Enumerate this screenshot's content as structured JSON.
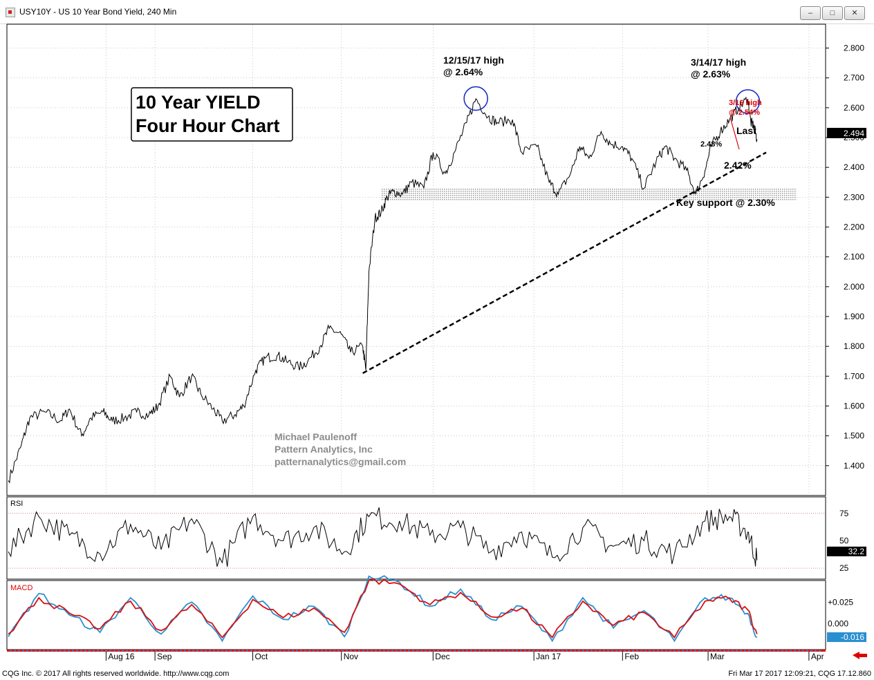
{
  "window": {
    "title": "USY10Y - US 10 Year Bond Yield, 240 Min",
    "minimize_glyph": "–",
    "maximize_glyph": "□",
    "close_glyph": "✕"
  },
  "footer": {
    "copyright": "CQG Inc. © 2017 All rights reserved worldwide. http://www.cqg.com",
    "timestamp": "Fri Mar 17 2017 12:09:21, CQG 17.12.860"
  },
  "colors": {
    "price": "#000000",
    "circle": "#1a2fc8",
    "red_annotation": "#e00000",
    "macd_line": "#2a8fd0",
    "macd_signal": "#d81010",
    "support_zone": "#c8c8c8"
  },
  "chart_data": [
    {
      "type": "line",
      "name": "price",
      "title": "10 Year YIELD",
      "subtitle": "Four Hour Chart",
      "ylim": [
        1.3,
        2.88
      ],
      "yticks": [
        1.4,
        1.5,
        1.6,
        1.7,
        1.8,
        1.9,
        2.0,
        2.1,
        2.2,
        2.3,
        2.4,
        2.5,
        2.6,
        2.7,
        2.8
      ],
      "ytick_labels": [
        "1.400",
        "1.500",
        "1.600",
        "1.700",
        "1.800",
        "1.900",
        "2.000",
        "2.100",
        "2.200",
        "2.300",
        "2.400",
        "2.500",
        "2.600",
        "2.700",
        "2.800"
      ],
      "xlim": [
        "2016-07-15",
        "2017-04-08"
      ],
      "xticks": [
        {
          "date": "2016-08-16",
          "label": "Aug 16"
        },
        {
          "date": "2016-09-01",
          "label": "Sep"
        },
        {
          "date": "2016-10-03",
          "label": "Oct"
        },
        {
          "date": "2016-11-01",
          "label": "Nov"
        },
        {
          "date": "2016-12-01",
          "label": "Dec"
        },
        {
          "date": "2017-01-03",
          "label": "Jan 17"
        },
        {
          "date": "2017-02-01",
          "label": "Feb"
        },
        {
          "date": "2017-03-01",
          "label": "Mar"
        },
        {
          "date": "2017-04-03",
          "label": "Apr"
        }
      ],
      "grid": true,
      "last_value": "2.494",
      "last_value_num": 2.494,
      "x": [
        "2016-07-15",
        "2016-07-19",
        "2016-07-22",
        "2016-07-27",
        "2016-08-01",
        "2016-08-04",
        "2016-08-08",
        "2016-08-11",
        "2016-08-15",
        "2016-08-18",
        "2016-08-22",
        "2016-08-26",
        "2016-08-30",
        "2016-09-02",
        "2016-09-06",
        "2016-09-09",
        "2016-09-13",
        "2016-09-16",
        "2016-09-20",
        "2016-09-23",
        "2016-09-27",
        "2016-09-30",
        "2016-10-04",
        "2016-10-07",
        "2016-10-11",
        "2016-10-14",
        "2016-10-18",
        "2016-10-21",
        "2016-10-25",
        "2016-10-28",
        "2016-11-01",
        "2016-11-04",
        "2016-11-08",
        "2016-11-09",
        "2016-11-10",
        "2016-11-12",
        "2016-11-14",
        "2016-11-16",
        "2016-11-18",
        "2016-11-21",
        "2016-11-24",
        "2016-11-28",
        "2016-12-01",
        "2016-12-05",
        "2016-12-08",
        "2016-12-12",
        "2016-12-15",
        "2016-12-19",
        "2016-12-22",
        "2016-12-27",
        "2016-12-30",
        "2017-01-04",
        "2017-01-08",
        "2017-01-11",
        "2017-01-15",
        "2017-01-18",
        "2017-01-21",
        "2017-01-25",
        "2017-01-28",
        "2017-02-01",
        "2017-02-04",
        "2017-02-08",
        "2017-02-12",
        "2017-02-15",
        "2017-02-18",
        "2017-02-22",
        "2017-02-25",
        "2017-02-28",
        "2017-03-02",
        "2017-03-05",
        "2017-03-08",
        "2017-03-11",
        "2017-03-14",
        "2017-03-15",
        "2017-03-16",
        "2017-03-17"
      ],
      "y": [
        1.35,
        1.46,
        1.56,
        1.58,
        1.55,
        1.59,
        1.5,
        1.56,
        1.58,
        1.55,
        1.56,
        1.58,
        1.57,
        1.6,
        1.7,
        1.63,
        1.7,
        1.64,
        1.59,
        1.55,
        1.57,
        1.6,
        1.72,
        1.76,
        1.77,
        1.75,
        1.73,
        1.75,
        1.8,
        1.86,
        1.84,
        1.78,
        1.8,
        1.72,
        2.05,
        2.23,
        2.25,
        2.3,
        2.32,
        2.31,
        2.35,
        2.33,
        2.45,
        2.38,
        2.45,
        2.55,
        2.63,
        2.57,
        2.55,
        2.56,
        2.45,
        2.47,
        2.35,
        2.31,
        2.38,
        2.47,
        2.43,
        2.52,
        2.48,
        2.47,
        2.43,
        2.33,
        2.42,
        2.47,
        2.43,
        2.39,
        2.31,
        2.39,
        2.47,
        2.52,
        2.56,
        2.6,
        2.63,
        2.55,
        2.54,
        2.494
      ],
      "support_band": {
        "from": 2.29,
        "to": 2.33,
        "start": "2016-11-14",
        "end": "2017-03-30"
      },
      "trendline": {
        "from": {
          "x": "2016-11-08",
          "y": 1.71
        },
        "to": {
          "x": "2017-03-20",
          "y": 2.45
        }
      },
      "annotations": [
        {
          "text_lines": [
            "12/15/17 high",
            "@ 2.64%"
          ],
          "at": {
            "x": "2016-12-15",
            "y": 2.64
          }
        },
        {
          "text_lines": [
            "3/14/17 high",
            "@ 2.63%"
          ],
          "at": {
            "x": "2017-03-14",
            "y": 2.63
          }
        },
        {
          "text_lines": [
            "3/16 high",
            "@ 2.54%"
          ]
        },
        {
          "text_lines": [
            "Last"
          ]
        },
        {
          "text_lines": [
            "2.48%"
          ]
        },
        {
          "text_lines": [
            "2.42%"
          ]
        },
        {
          "text_lines": [
            "Key support @ 2.30%"
          ]
        }
      ],
      "credit_lines": [
        "Michael Paulenoff",
        "Pattern Analytics, Inc",
        "patternanalytics@gmail.com"
      ]
    },
    {
      "type": "line",
      "name": "RSI",
      "title": "RSI",
      "ylim": [
        15,
        90
      ],
      "yticks": [
        25,
        50,
        75
      ],
      "ytick_labels": [
        "25",
        "50",
        "75"
      ],
      "reference_lines": [
        25,
        75
      ],
      "last_value": "32.2",
      "last_value_num": 32.2,
      "x": [
        "2016-07-15",
        "2016-07-25",
        "2016-08-04",
        "2016-08-14",
        "2016-08-24",
        "2016-09-03",
        "2016-09-13",
        "2016-09-23",
        "2016-10-03",
        "2016-10-13",
        "2016-10-23",
        "2016-11-02",
        "2016-11-10",
        "2016-11-20",
        "2016-11-30",
        "2016-12-10",
        "2016-12-20",
        "2016-12-30",
        "2017-01-09",
        "2017-01-19",
        "2017-01-29",
        "2017-02-08",
        "2017-02-18",
        "2017-02-28",
        "2017-03-08",
        "2017-03-14",
        "2017-03-17"
      ],
      "y": [
        40,
        72,
        55,
        38,
        65,
        42,
        70,
        30,
        72,
        50,
        62,
        40,
        72,
        68,
        55,
        62,
        40,
        58,
        35,
        62,
        45,
        50,
        38,
        68,
        72,
        58,
        32.2
      ]
    },
    {
      "type": "line",
      "name": "MACD",
      "title": "MACD",
      "ylim": [
        -0.03,
        0.05
      ],
      "yticks": [
        0.025,
        0.0,
        -0.016
      ],
      "ytick_labels": [
        "+0.025",
        "0.000",
        "-0.016"
      ],
      "last_value": "-0.016",
      "series": [
        {
          "name": "MACD",
          "color": "#2a8fd0",
          "y": [
            -0.015,
            0.035,
            0.01,
            -0.01,
            0.03,
            -0.012,
            0.025,
            -0.02,
            0.032,
            0.005,
            0.02,
            -0.015,
            0.055,
            0.048,
            0.02,
            0.04,
            0.005,
            0.02,
            -0.02,
            0.03,
            -0.005,
            0.015,
            -0.02,
            0.03,
            0.03,
            0.012,
            -0.016
          ]
        },
        {
          "name": "Signal",
          "color": "#d81010",
          "y": [
            -0.012,
            0.03,
            0.012,
            -0.006,
            0.026,
            -0.008,
            0.022,
            -0.016,
            0.028,
            0.007,
            0.018,
            -0.01,
            0.05,
            0.046,
            0.022,
            0.036,
            0.008,
            0.018,
            -0.016,
            0.026,
            -0.002,
            0.013,
            -0.016,
            0.026,
            0.029,
            0.016,
            -0.012
          ]
        }
      ],
      "x": [
        "2016-07-15",
        "2016-07-25",
        "2016-08-04",
        "2016-08-14",
        "2016-08-24",
        "2016-09-03",
        "2016-09-13",
        "2016-09-23",
        "2016-10-03",
        "2016-10-13",
        "2016-10-23",
        "2016-11-02",
        "2016-11-10",
        "2016-11-20",
        "2016-11-30",
        "2016-12-10",
        "2016-12-20",
        "2016-12-30",
        "2017-01-09",
        "2017-01-19",
        "2017-01-29",
        "2017-02-08",
        "2017-02-18",
        "2017-02-28",
        "2017-03-08",
        "2017-03-14",
        "2017-03-17"
      ]
    }
  ]
}
